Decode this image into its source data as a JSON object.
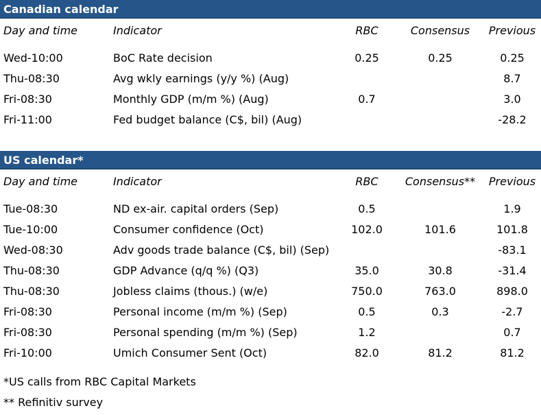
{
  "colors": {
    "header_band": "#265589"
  },
  "canadian": {
    "title": "Canadian calendar",
    "columns": {
      "day": "Day and time",
      "indicator": "Indicator",
      "rbc": "RBC",
      "consensus": "Consensus",
      "previous": "Previous"
    },
    "rows": [
      {
        "day": "Wed-10:00",
        "indicator": "BoC Rate decision",
        "rbc": "0.25",
        "consensus": "0.25",
        "previous": "0.25"
      },
      {
        "day": "Thu-08:30",
        "indicator": "Avg wkly earnings (y/y %) (Aug)",
        "rbc": "",
        "consensus": "",
        "previous": "8.7"
      },
      {
        "day": "Fri-08:30",
        "indicator": "Monthly GDP (m/m %) (Aug)",
        "rbc": "0.7",
        "consensus": "",
        "previous": "3.0"
      },
      {
        "day": "Fri-11:00",
        "indicator": "Fed budget balance (C$, bil) (Aug)",
        "rbc": "",
        "consensus": "",
        "previous": "-28.2"
      }
    ]
  },
  "us": {
    "title": "US calendar*",
    "columns": {
      "day": "Day and time",
      "indicator": "Indicator",
      "rbc": "RBC",
      "consensus": "Consensus**",
      "previous": "Previous"
    },
    "rows": [
      {
        "day": "Tue-08:30",
        "indicator": "ND ex-air. capital orders (Sep)",
        "rbc": "0.5",
        "consensus": "",
        "previous": "1.9"
      },
      {
        "day": "Tue-10:00",
        "indicator": "Consumer confidence (Oct)",
        "rbc": "102.0",
        "consensus": "101.6",
        "previous": "101.8"
      },
      {
        "day": "Wed-08:30",
        "indicator": "Adv goods trade balance (C$, bil) (Sep)",
        "rbc": "",
        "consensus": "",
        "previous": "-83.1"
      },
      {
        "day": "Thu-08:30",
        "indicator": "GDP Advance (q/q %) (Q3)",
        "rbc": "35.0",
        "consensus": "30.8",
        "previous": "-31.4"
      },
      {
        "day": "Thu-08:30",
        "indicator": "Jobless claims (thous.) (w/e)",
        "rbc": "750.0",
        "consensus": "763.0",
        "previous": "898.0"
      },
      {
        "day": "Fri-08:30",
        "indicator": "Personal income (m/m %) (Sep)",
        "rbc": "0.5",
        "consensus": "0.3",
        "previous": "-2.7"
      },
      {
        "day": "Fri-08:30",
        "indicator": "Personal spending (m/m %) (Sep)",
        "rbc": "1.2",
        "consensus": "",
        "previous": "0.7"
      },
      {
        "day": "Fri-10:00",
        "indicator": "Umich Consumer Sent (Oct)",
        "rbc": "82.0",
        "consensus": "81.2",
        "previous": "81.2"
      }
    ]
  },
  "footnotes": [
    "*US calls from RBC Capital Markets",
    "** Refinitiv survey"
  ]
}
